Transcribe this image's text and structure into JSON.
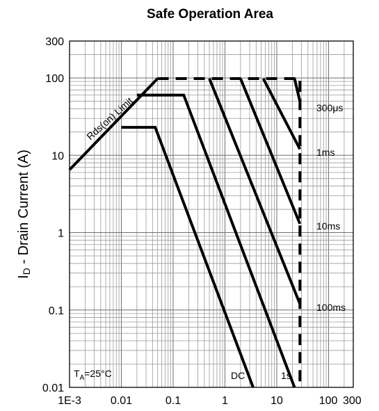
{
  "chart_data": {
    "type": "line",
    "title": "Safe Operation Area",
    "ylabel": "I",
    "ylabel_sub": "D",
    "ylabel_rest": " - Drain Current (A)",
    "xlabel": "",
    "x_scale": "log",
    "y_scale": "log",
    "xlim": [
      0.001,
      300
    ],
    "ylim": [
      0.01,
      300
    ],
    "grid": true,
    "x_ticks": [
      {
        "value": 0.001,
        "label": "1E-3"
      },
      {
        "value": 0.01,
        "label": "0.01"
      },
      {
        "value": 0.1,
        "label": "0.1"
      },
      {
        "value": 1,
        "label": "1"
      },
      {
        "value": 10,
        "label": "10"
      },
      {
        "value": 100,
        "label": "100"
      },
      {
        "value": 300,
        "label": "300"
      }
    ],
    "y_ticks": [
      {
        "value": 0.01,
        "label": "0.01"
      },
      {
        "value": 0.1,
        "label": "0.1"
      },
      {
        "value": 1,
        "label": "1"
      },
      {
        "value": 10,
        "label": "10"
      },
      {
        "value": 100,
        "label": "100"
      },
      {
        "value": 300,
        "label": "300"
      }
    ],
    "series": [
      {
        "name": "Rds(on) Limit",
        "style": "solid",
        "points": [
          [
            0.001,
            6.5
          ],
          [
            0.05,
            98
          ]
        ]
      },
      {
        "name": "Limit",
        "style": "dashed",
        "points": [
          [
            0.05,
            98
          ],
          [
            28,
            98
          ],
          [
            28,
            0.01
          ]
        ]
      },
      {
        "name": "300μs",
        "style": "solid",
        "points": [
          [
            22,
            98
          ],
          [
            28,
            50
          ]
        ]
      },
      {
        "name": "1ms",
        "style": "solid",
        "points": [
          [
            5.5,
            98
          ],
          [
            28,
            12
          ]
        ]
      },
      {
        "name": "10ms",
        "style": "solid",
        "points": [
          [
            2,
            98
          ],
          [
            28,
            1.3
          ]
        ]
      },
      {
        "name": "100ms",
        "style": "solid",
        "points": [
          [
            0.5,
            98
          ],
          [
            28,
            0.12
          ]
        ]
      },
      {
        "name": "1s",
        "style": "solid",
        "points": [
          [
            0.02,
            60
          ],
          [
            0.16,
            60
          ],
          [
            22,
            0.01
          ]
        ]
      },
      {
        "name": "DC",
        "style": "solid",
        "points": [
          [
            0.01,
            23
          ],
          [
            0.045,
            23
          ],
          [
            3.5,
            0.01
          ]
        ]
      }
    ],
    "annotations": {
      "rds": "Rds(on) Limit",
      "t300us": "300μs",
      "t1ms": "1ms",
      "t10ms": "10ms",
      "t100ms": "100ms",
      "dc": "DC",
      "t1s": "1s",
      "ta_main": "T",
      "ta_sub": "A",
      "ta_rest": "=25°C"
    }
  }
}
